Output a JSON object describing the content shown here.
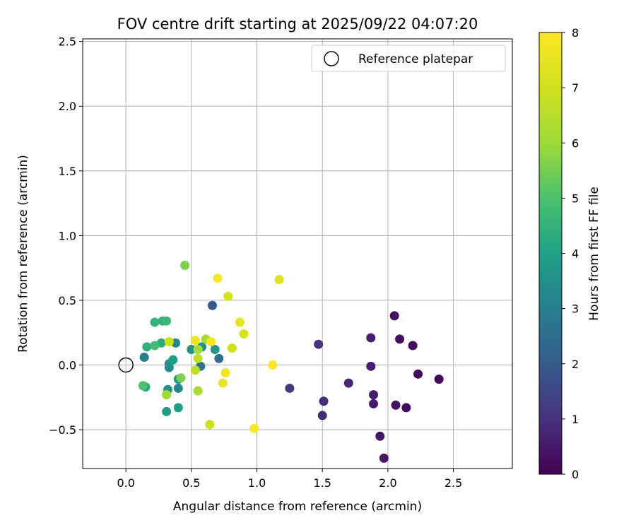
{
  "chart_data": {
    "type": "scatter",
    "title": "FOV centre drift starting at 2025/09/22 04:07:20",
    "xlabel": "Angular distance from reference (arcmin)",
    "ylabel": "Rotation from reference (arcmin)",
    "xlim": [
      -0.33,
      2.95
    ],
    "ylim": [
      -0.8,
      2.52
    ],
    "xticks": [
      0.0,
      0.5,
      1.0,
      1.5,
      2.0,
      2.5
    ],
    "xtick_labels": [
      "0.0",
      "0.5",
      "1.0",
      "1.5",
      "2.0",
      "2.5"
    ],
    "yticks": [
      -0.5,
      0.0,
      0.5,
      1.0,
      1.5,
      2.0,
      2.5
    ],
    "ytick_labels": [
      "−0.5",
      "0.0",
      "0.5",
      "1.0",
      "1.5",
      "2.0",
      "2.5"
    ],
    "grid": true,
    "legend": {
      "placement": "top-right",
      "entries": [
        "Reference platepar"
      ]
    },
    "reference_point": {
      "x": 0.0,
      "y": 0.0,
      "marker": "open-circle"
    },
    "colorbar": {
      "label": "Hours from first FF file",
      "range": [
        0,
        8
      ],
      "ticks": [
        0,
        1,
        2,
        3,
        4,
        5,
        6,
        7,
        8
      ],
      "tick_labels": [
        "0",
        "1",
        "2",
        "3",
        "4",
        "5",
        "6",
        "7",
        "8"
      ],
      "colormap": "viridis"
    },
    "points": [
      {
        "x": 2.39,
        "y": -0.11,
        "c": 0.05
      },
      {
        "x": 2.23,
        "y": -0.07,
        "c": 0.1
      },
      {
        "x": 2.14,
        "y": -0.33,
        "c": 0.15
      },
      {
        "x": 2.19,
        "y": 0.15,
        "c": 0.2
      },
      {
        "x": 2.09,
        "y": 0.2,
        "c": 0.25
      },
      {
        "x": 2.06,
        "y": -0.31,
        "c": 0.3
      },
      {
        "x": 2.05,
        "y": 0.38,
        "c": 0.35
      },
      {
        "x": 1.97,
        "y": -0.72,
        "c": 0.4
      },
      {
        "x": 1.94,
        "y": -0.55,
        "c": 0.45
      },
      {
        "x": 1.89,
        "y": -0.3,
        "c": 0.5
      },
      {
        "x": 1.89,
        "y": -0.23,
        "c": 0.55
      },
      {
        "x": 1.87,
        "y": -0.01,
        "c": 0.6
      },
      {
        "x": 1.87,
        "y": 0.21,
        "c": 0.65
      },
      {
        "x": 1.7,
        "y": -0.14,
        "c": 0.75
      },
      {
        "x": 1.51,
        "y": -0.28,
        "c": 0.85
      },
      {
        "x": 1.5,
        "y": -0.39,
        "c": 0.9
      },
      {
        "x": 1.47,
        "y": 0.16,
        "c": 1.0
      },
      {
        "x": 1.25,
        "y": -0.18,
        "c": 1.2
      },
      {
        "x": 0.66,
        "y": 0.46,
        "c": 2.0
      },
      {
        "x": 0.14,
        "y": 0.06,
        "c": 3.0
      },
      {
        "x": 0.71,
        "y": 0.05,
        "c": 2.5
      },
      {
        "x": 0.57,
        "y": -0.01,
        "c": 2.7
      },
      {
        "x": 0.4,
        "y": -0.18,
        "c": 3.2
      },
      {
        "x": 0.33,
        "y": -0.02,
        "c": 3.4
      },
      {
        "x": 0.33,
        "y": 0.01,
        "c": 3.5
      },
      {
        "x": 0.38,
        "y": 0.17,
        "c": 3.3
      },
      {
        "x": 0.5,
        "y": 0.12,
        "c": 3.5
      },
      {
        "x": 0.58,
        "y": 0.14,
        "c": 3.6
      },
      {
        "x": 0.68,
        "y": 0.12,
        "c": 3.7
      },
      {
        "x": 0.4,
        "y": -0.11,
        "c": 3.7
      },
      {
        "x": 0.32,
        "y": -0.19,
        "c": 3.6
      },
      {
        "x": 0.31,
        "y": -0.36,
        "c": 3.8
      },
      {
        "x": 0.4,
        "y": -0.33,
        "c": 3.9
      },
      {
        "x": 0.36,
        "y": 0.04,
        "c": 3.9
      },
      {
        "x": 0.15,
        "y": -0.17,
        "c": 4.2
      },
      {
        "x": 0.27,
        "y": 0.17,
        "c": 4.3
      },
      {
        "x": 0.16,
        "y": 0.14,
        "c": 4.4
      },
      {
        "x": 0.22,
        "y": 0.33,
        "c": 4.5
      },
      {
        "x": 0.28,
        "y": 0.34,
        "c": 4.5
      },
      {
        "x": 0.31,
        "y": 0.34,
        "c": 4.7
      },
      {
        "x": 0.22,
        "y": 0.15,
        "c": 4.8
      },
      {
        "x": 0.13,
        "y": -0.16,
        "c": 5.0
      },
      {
        "x": 0.42,
        "y": -0.1,
        "c": 5.6
      },
      {
        "x": 0.45,
        "y": 0.77,
        "c": 5.6
      },
      {
        "x": 0.31,
        "y": -0.23,
        "c": 6.0
      },
      {
        "x": 0.55,
        "y": 0.12,
        "c": 6.1
      },
      {
        "x": 0.61,
        "y": 0.2,
        "c": 6.2
      },
      {
        "x": 0.55,
        "y": -0.2,
        "c": 6.2
      },
      {
        "x": 0.53,
        "y": -0.04,
        "c": 6.6
      },
      {
        "x": 0.55,
        "y": 0.05,
        "c": 6.7
      },
      {
        "x": 0.33,
        "y": 0.18,
        "c": 6.9
      },
      {
        "x": 0.64,
        "y": -0.46,
        "c": 6.9
      },
      {
        "x": 0.81,
        "y": 0.13,
        "c": 7.0
      },
      {
        "x": 0.78,
        "y": 0.53,
        "c": 7.1
      },
      {
        "x": 0.9,
        "y": 0.24,
        "c": 7.2
      },
      {
        "x": 1.17,
        "y": 0.66,
        "c": 7.3
      },
      {
        "x": 0.87,
        "y": 0.33,
        "c": 7.5
      },
      {
        "x": 0.53,
        "y": 0.19,
        "c": 7.6
      },
      {
        "x": 0.74,
        "y": -0.14,
        "c": 7.6
      },
      {
        "x": 0.76,
        "y": -0.06,
        "c": 7.7
      },
      {
        "x": 0.65,
        "y": 0.18,
        "c": 7.8
      },
      {
        "x": 0.98,
        "y": -0.49,
        "c": 7.9
      },
      {
        "x": 0.7,
        "y": 0.67,
        "c": 7.9
      },
      {
        "x": 1.12,
        "y": 0.0,
        "c": 8.0
      }
    ]
  }
}
